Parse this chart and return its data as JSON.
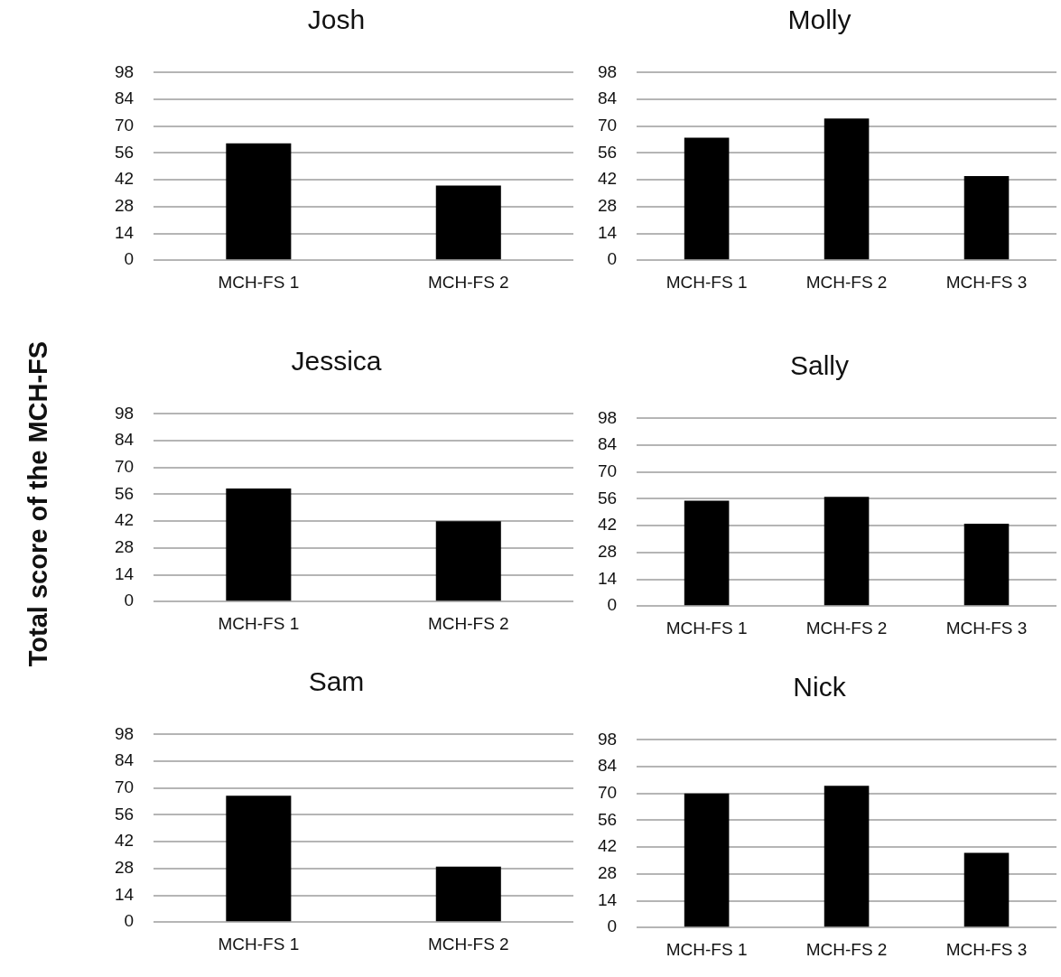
{
  "chart_data": [
    {
      "type": "bar",
      "title": "Josh",
      "categories": [
        "MCH-FS 1",
        "MCH-FS 2"
      ],
      "values": [
        61,
        39
      ],
      "color": "#000000",
      "ylim": [
        0,
        98
      ],
      "yticks": [
        0,
        14,
        28,
        42,
        56,
        70,
        84,
        98
      ],
      "grid": "y"
    },
    {
      "type": "bar",
      "title": "Molly",
      "categories": [
        "MCH-FS 1",
        "MCH-FS 2",
        "MCH-FS 3"
      ],
      "values": [
        64,
        74,
        44
      ],
      "color": "#000000",
      "ylim": [
        0,
        98
      ],
      "yticks": [
        0,
        14,
        28,
        42,
        56,
        70,
        84,
        98
      ],
      "grid": "y"
    },
    {
      "type": "bar",
      "title": "Jessica",
      "ylabel": "Total score of the MCH-FS",
      "categories": [
        "MCH-FS 1",
        "MCH-FS 2"
      ],
      "values": [
        59,
        42
      ],
      "color": "#000000",
      "ylim": [
        0,
        98
      ],
      "yticks": [
        0,
        14,
        28,
        42,
        56,
        70,
        84,
        98
      ],
      "grid": "y"
    },
    {
      "type": "bar",
      "title": "Sally",
      "categories": [
        "MCH-FS 1",
        "MCH-FS 2",
        "MCH-FS 3"
      ],
      "values": [
        55,
        57,
        43
      ],
      "color": "#000000",
      "ylim": [
        0,
        98
      ],
      "yticks": [
        0,
        14,
        28,
        42,
        56,
        70,
        84,
        98
      ],
      "grid": "y"
    },
    {
      "type": "bar",
      "title": "Sam",
      "categories": [
        "MCH-FS 1",
        "MCH-FS 2"
      ],
      "values": [
        66,
        29
      ],
      "color": "#000000",
      "ylim": [
        0,
        98
      ],
      "yticks": [
        0,
        14,
        28,
        42,
        56,
        70,
        84,
        98
      ],
      "grid": "y"
    },
    {
      "type": "bar",
      "title": "Nick",
      "categories": [
        "MCH-FS 1",
        "MCH-FS 2",
        "MCH-FS 3"
      ],
      "values": [
        70,
        74,
        39
      ],
      "color": "#000000",
      "ylim": [
        0,
        98
      ],
      "yticks": [
        0,
        14,
        28,
        42,
        56,
        70,
        84,
        98
      ],
      "grid": "y"
    }
  ]
}
